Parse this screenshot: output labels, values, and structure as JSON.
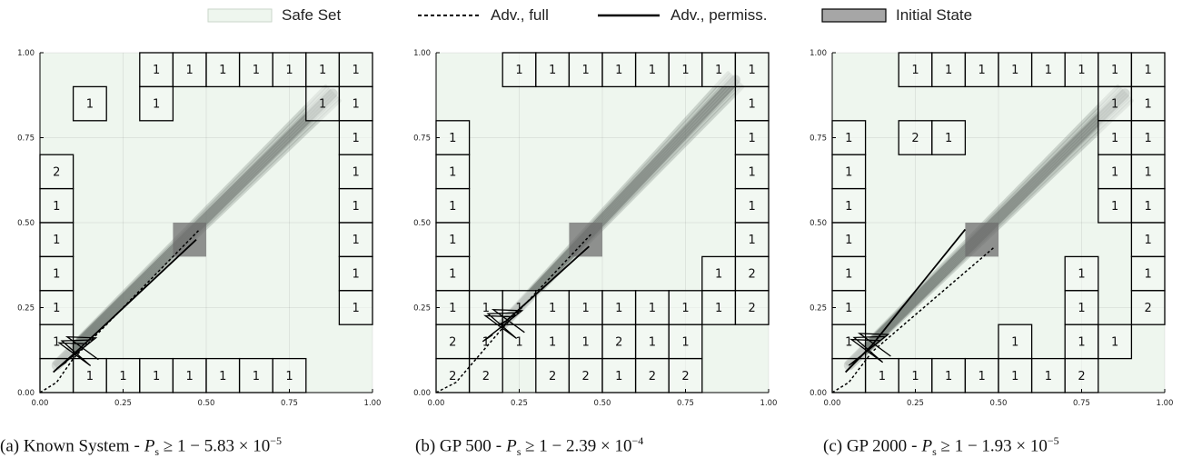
{
  "legend": {
    "safe_set": "Safe Set",
    "adv_full": "Adv., full",
    "adv_permiss": "Adv., permiss.",
    "initial_state": "Initial State"
  },
  "colors": {
    "safe_fill": "#eef6ee",
    "trajectory": "#7f8a84",
    "initial_state": "#6e6e6e",
    "grid_line": "#000000"
  },
  "chart_data": [
    {
      "type": "grid",
      "caption": {
        "prefix": "(a) Known System",
        "lhs": "P",
        "sub": "s",
        "rel": "≥ 1 − 5.83 × 10",
        "exp": "−5"
      },
      "xlim": [
        0,
        1
      ],
      "ylim": [
        0,
        1
      ],
      "xticks": [
        "0.00",
        "0.25",
        "0.50",
        "0.75",
        "1.00"
      ],
      "yticks": [
        "0.00",
        "0.25",
        "0.50",
        "0.75",
        "1.00"
      ],
      "cell_size": 0.1,
      "safe_region": [
        0.0,
        0.0,
        1.0,
        1.0
      ],
      "initial_state": [
        0.4,
        0.4,
        0.5,
        0.5
      ],
      "trajectory_band": {
        "start": [
          0.05,
          0.08
        ],
        "end": [
          0.88,
          0.88
        ],
        "width": 0.055
      },
      "adv_full": [
        [
          0.0,
          0.0
        ],
        [
          0.05,
          0.03
        ],
        [
          0.1,
          0.1
        ],
        [
          0.48,
          0.48
        ]
      ],
      "adv_permiss": [
        [
          0.04,
          0.06
        ],
        [
          0.12,
          0.13
        ],
        [
          0.47,
          0.45
        ]
      ],
      "cells": [
        {
          "x": 0.3,
          "y": 0.9,
          "label": "1"
        },
        {
          "x": 0.4,
          "y": 0.9,
          "label": "1"
        },
        {
          "x": 0.5,
          "y": 0.9,
          "label": "1"
        },
        {
          "x": 0.6,
          "y": 0.9,
          "label": "1"
        },
        {
          "x": 0.7,
          "y": 0.9,
          "label": "1"
        },
        {
          "x": 0.8,
          "y": 0.9,
          "label": "1"
        },
        {
          "x": 0.9,
          "y": 0.9,
          "label": "1"
        },
        {
          "x": 0.1,
          "y": 0.8,
          "label": "1"
        },
        {
          "x": 0.3,
          "y": 0.8,
          "label": "1"
        },
        {
          "x": 0.8,
          "y": 0.8,
          "label": "1"
        },
        {
          "x": 0.9,
          "y": 0.8,
          "label": "1"
        },
        {
          "x": 0.9,
          "y": 0.7,
          "label": "1"
        },
        {
          "x": 0.9,
          "y": 0.6,
          "label": "1"
        },
        {
          "x": 0.9,
          "y": 0.5,
          "label": "1"
        },
        {
          "x": 0.9,
          "y": 0.4,
          "label": "1"
        },
        {
          "x": 0.9,
          "y": 0.3,
          "label": "1"
        },
        {
          "x": 0.9,
          "y": 0.2,
          "label": "1"
        },
        {
          "x": 0.0,
          "y": 0.6,
          "label": "2"
        },
        {
          "x": 0.0,
          "y": 0.5,
          "label": "1"
        },
        {
          "x": 0.0,
          "y": 0.4,
          "label": "1"
        },
        {
          "x": 0.0,
          "y": 0.3,
          "label": "1"
        },
        {
          "x": 0.0,
          "y": 0.2,
          "label": "1"
        },
        {
          "x": 0.0,
          "y": 0.1,
          "label": "1"
        },
        {
          "x": 0.0,
          "y": 0.0,
          "label": ""
        },
        {
          "x": 0.1,
          "y": 0.0,
          "label": "1"
        },
        {
          "x": 0.2,
          "y": 0.0,
          "label": "1"
        },
        {
          "x": 0.3,
          "y": 0.0,
          "label": "1"
        },
        {
          "x": 0.4,
          "y": 0.0,
          "label": "1"
        },
        {
          "x": 0.5,
          "y": 0.0,
          "label": "1"
        },
        {
          "x": 0.6,
          "y": 0.0,
          "label": "1"
        },
        {
          "x": 0.7,
          "y": 0.0,
          "label": "1"
        }
      ]
    },
    {
      "type": "grid",
      "caption": {
        "prefix": "(b) GP 500",
        "lhs": "P",
        "sub": "s",
        "rel": "≥ 1 − 2.39 × 10",
        "exp": "−4"
      },
      "xlim": [
        0,
        1
      ],
      "ylim": [
        0,
        1
      ],
      "xticks": [
        "0.00",
        "0.25",
        "0.50",
        "0.75",
        "1.00"
      ],
      "yticks": [
        "0.00",
        "0.25",
        "0.50",
        "0.75",
        "1.00"
      ],
      "cell_size": 0.1,
      "safe_region": [
        0.0,
        0.0,
        1.0,
        1.0
      ],
      "initial_state": [
        0.4,
        0.4,
        0.5,
        0.5
      ],
      "trajectory_band": {
        "start": [
          0.2,
          0.2
        ],
        "end": [
          0.9,
          0.92
        ],
        "width": 0.055
      },
      "adv_full": [
        [
          0.0,
          0.0
        ],
        [
          0.06,
          0.03
        ],
        [
          0.2,
          0.19
        ],
        [
          0.47,
          0.47
        ]
      ],
      "adv_permiss": [
        [
          0.19,
          0.2
        ],
        [
          0.21,
          0.21
        ],
        [
          0.46,
          0.43
        ]
      ],
      "cells": [
        {
          "x": 0.2,
          "y": 0.9,
          "label": "1"
        },
        {
          "x": 0.3,
          "y": 0.9,
          "label": "1"
        },
        {
          "x": 0.4,
          "y": 0.9,
          "label": "1"
        },
        {
          "x": 0.5,
          "y": 0.9,
          "label": "1"
        },
        {
          "x": 0.6,
          "y": 0.9,
          "label": "1"
        },
        {
          "x": 0.7,
          "y": 0.9,
          "label": "1"
        },
        {
          "x": 0.8,
          "y": 0.9,
          "label": "1"
        },
        {
          "x": 0.9,
          "y": 0.9,
          "label": "1"
        },
        {
          "x": 0.9,
          "y": 0.8,
          "label": "1"
        },
        {
          "x": 0.9,
          "y": 0.7,
          "label": "1"
        },
        {
          "x": 0.9,
          "y": 0.6,
          "label": "1"
        },
        {
          "x": 0.9,
          "y": 0.5,
          "label": "1"
        },
        {
          "x": 0.9,
          "y": 0.4,
          "label": "1"
        },
        {
          "x": 0.9,
          "y": 0.3,
          "label": "2"
        },
        {
          "x": 0.9,
          "y": 0.2,
          "label": "2"
        },
        {
          "x": 0.8,
          "y": 0.3,
          "label": "1"
        },
        {
          "x": 0.8,
          "y": 0.2,
          "label": "1"
        },
        {
          "x": 0.0,
          "y": 0.7,
          "label": "1"
        },
        {
          "x": 0.0,
          "y": 0.6,
          "label": "1"
        },
        {
          "x": 0.0,
          "y": 0.5,
          "label": "1"
        },
        {
          "x": 0.0,
          "y": 0.4,
          "label": "1"
        },
        {
          "x": 0.0,
          "y": 0.3,
          "label": "1"
        },
        {
          "x": 0.0,
          "y": 0.2,
          "label": "1"
        },
        {
          "x": 0.1,
          "y": 0.2,
          "label": "1"
        },
        {
          "x": 0.2,
          "y": 0.2,
          "label": "1"
        },
        {
          "x": 0.3,
          "y": 0.2,
          "label": "1"
        },
        {
          "x": 0.4,
          "y": 0.2,
          "label": "1"
        },
        {
          "x": 0.5,
          "y": 0.2,
          "label": "1"
        },
        {
          "x": 0.6,
          "y": 0.2,
          "label": "1"
        },
        {
          "x": 0.7,
          "y": 0.2,
          "label": "1"
        },
        {
          "x": 0.0,
          "y": 0.1,
          "label": "2"
        },
        {
          "x": 0.1,
          "y": 0.1,
          "label": "1"
        },
        {
          "x": 0.2,
          "y": 0.1,
          "label": "1"
        },
        {
          "x": 0.3,
          "y": 0.1,
          "label": "1"
        },
        {
          "x": 0.4,
          "y": 0.1,
          "label": "1"
        },
        {
          "x": 0.5,
          "y": 0.1,
          "label": "2"
        },
        {
          "x": 0.6,
          "y": 0.1,
          "label": "1"
        },
        {
          "x": 0.7,
          "y": 0.1,
          "label": "1"
        },
        {
          "x": 0.0,
          "y": 0.0,
          "label": "2"
        },
        {
          "x": 0.1,
          "y": 0.0,
          "label": "2"
        },
        {
          "x": 0.3,
          "y": 0.0,
          "label": "2"
        },
        {
          "x": 0.4,
          "y": 0.0,
          "label": "2"
        },
        {
          "x": 0.5,
          "y": 0.0,
          "label": "1"
        },
        {
          "x": 0.6,
          "y": 0.0,
          "label": "2"
        },
        {
          "x": 0.7,
          "y": 0.0,
          "label": "2"
        }
      ]
    },
    {
      "type": "grid",
      "caption": {
        "prefix": "(c) GP 2000",
        "lhs": "P",
        "sub": "s",
        "rel": "≥ 1 − 1.93 × 10",
        "exp": "−5"
      },
      "xlim": [
        0,
        1
      ],
      "ylim": [
        0,
        1
      ],
      "xticks": [
        "0.00",
        "0.25",
        "0.50",
        "0.75",
        "1.00"
      ],
      "yticks": [
        "0.00",
        "0.25",
        "0.50",
        "0.75",
        "1.00"
      ],
      "cell_size": 0.1,
      "safe_region": [
        0.0,
        0.0,
        1.0,
        1.0
      ],
      "initial_state": [
        0.4,
        0.4,
        0.5,
        0.5
      ],
      "trajectory_band": {
        "start": [
          0.05,
          0.08
        ],
        "end": [
          0.88,
          0.88
        ],
        "width": 0.055
      },
      "adv_full": [
        [
          0.0,
          0.0
        ],
        [
          0.05,
          0.03
        ],
        [
          0.12,
          0.12
        ],
        [
          0.49,
          0.43
        ]
      ],
      "adv_permiss": [
        [
          0.04,
          0.06
        ],
        [
          0.12,
          0.14
        ],
        [
          0.21,
          0.25
        ],
        [
          0.4,
          0.48
        ]
      ],
      "cells": [
        {
          "x": 0.2,
          "y": 0.9,
          "label": "1"
        },
        {
          "x": 0.3,
          "y": 0.9,
          "label": "1"
        },
        {
          "x": 0.4,
          "y": 0.9,
          "label": "1"
        },
        {
          "x": 0.5,
          "y": 0.9,
          "label": "1"
        },
        {
          "x": 0.6,
          "y": 0.9,
          "label": "1"
        },
        {
          "x": 0.7,
          "y": 0.9,
          "label": "1"
        },
        {
          "x": 0.8,
          "y": 0.9,
          "label": "1"
        },
        {
          "x": 0.9,
          "y": 0.9,
          "label": "1"
        },
        {
          "x": 0.8,
          "y": 0.8,
          "label": "1"
        },
        {
          "x": 0.9,
          "y": 0.8,
          "label": "1"
        },
        {
          "x": 0.8,
          "y": 0.7,
          "label": "1"
        },
        {
          "x": 0.9,
          "y": 0.7,
          "label": "1"
        },
        {
          "x": 0.8,
          "y": 0.6,
          "label": "1"
        },
        {
          "x": 0.9,
          "y": 0.6,
          "label": "1"
        },
        {
          "x": 0.8,
          "y": 0.5,
          "label": "1"
        },
        {
          "x": 0.9,
          "y": 0.5,
          "label": "1"
        },
        {
          "x": 0.9,
          "y": 0.4,
          "label": "1"
        },
        {
          "x": 0.9,
          "y": 0.3,
          "label": "1"
        },
        {
          "x": 0.9,
          "y": 0.2,
          "label": "2"
        },
        {
          "x": 0.2,
          "y": 0.7,
          "label": "2"
        },
        {
          "x": 0.3,
          "y": 0.7,
          "label": "1"
        },
        {
          "x": 0.0,
          "y": 0.7,
          "label": "1"
        },
        {
          "x": 0.0,
          "y": 0.6,
          "label": "1"
        },
        {
          "x": 0.0,
          "y": 0.5,
          "label": "1"
        },
        {
          "x": 0.0,
          "y": 0.4,
          "label": "1"
        },
        {
          "x": 0.0,
          "y": 0.3,
          "label": "1"
        },
        {
          "x": 0.0,
          "y": 0.2,
          "label": "1"
        },
        {
          "x": 0.0,
          "y": 0.1,
          "label": "1"
        },
        {
          "x": 0.0,
          "y": 0.0,
          "label": ""
        },
        {
          "x": 0.7,
          "y": 0.3,
          "label": "1"
        },
        {
          "x": 0.7,
          "y": 0.2,
          "label": "1"
        },
        {
          "x": 0.7,
          "y": 0.1,
          "label": "1"
        },
        {
          "x": 0.8,
          "y": 0.1,
          "label": "1"
        },
        {
          "x": 0.5,
          "y": 0.1,
          "label": "1"
        },
        {
          "x": 0.1,
          "y": 0.0,
          "label": "1"
        },
        {
          "x": 0.2,
          "y": 0.0,
          "label": "1"
        },
        {
          "x": 0.3,
          "y": 0.0,
          "label": "1"
        },
        {
          "x": 0.4,
          "y": 0.0,
          "label": "1"
        },
        {
          "x": 0.5,
          "y": 0.0,
          "label": "1"
        },
        {
          "x": 0.6,
          "y": 0.0,
          "label": "1"
        },
        {
          "x": 0.7,
          "y": 0.0,
          "label": "2"
        }
      ]
    }
  ]
}
